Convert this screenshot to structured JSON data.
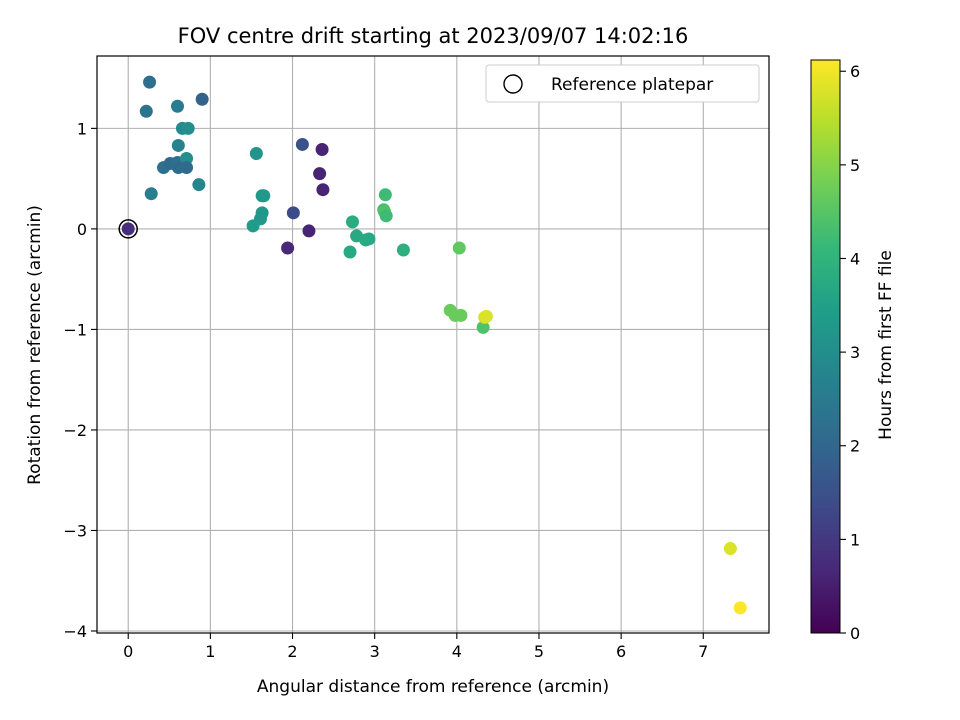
{
  "chart_data": {
    "type": "scatter",
    "title": "FOV centre drift starting at 2023/09/07 14:02:16",
    "xlabel": "Angular distance from reference (arcmin)",
    "ylabel": "Rotation from reference (arcmin)",
    "xlim": [
      -0.38,
      7.8
    ],
    "ylim": [
      -4.02,
      1.72
    ],
    "xticks": [
      0,
      1,
      2,
      3,
      4,
      5,
      6,
      7
    ],
    "yticks": [
      -4,
      -3,
      -2,
      -1,
      0,
      1
    ],
    "grid": true,
    "legend": {
      "placement": "top-right",
      "entries": [
        "Reference platepar"
      ]
    },
    "colorbar": {
      "label": "Hours from first FF file",
      "range": [
        0,
        6.12
      ],
      "ticks": [
        0,
        1,
        2,
        3,
        4,
        5,
        6
      ],
      "colormap": "viridis"
    },
    "reference_point": {
      "x": 0,
      "y": 0
    },
    "points": [
      {
        "x": 0.0,
        "y": 0.0,
        "c": 0.8
      },
      {
        "x": 0.26,
        "y": 1.46,
        "c": 2.2
      },
      {
        "x": 0.22,
        "y": 1.17,
        "c": 2.3
      },
      {
        "x": 0.6,
        "y": 1.22,
        "c": 2.5
      },
      {
        "x": 0.9,
        "y": 1.29,
        "c": 1.9
      },
      {
        "x": 0.66,
        "y": 1.0,
        "c": 2.9
      },
      {
        "x": 0.73,
        "y": 1.0,
        "c": 3.0
      },
      {
        "x": 0.61,
        "y": 0.83,
        "c": 2.7
      },
      {
        "x": 0.43,
        "y": 0.61,
        "c": 2.2
      },
      {
        "x": 0.51,
        "y": 0.65,
        "c": 2.1
      },
      {
        "x": 0.6,
        "y": 0.66,
        "c": 2.2
      },
      {
        "x": 0.71,
        "y": 0.7,
        "c": 3.0
      },
      {
        "x": 0.61,
        "y": 0.61,
        "c": 2.1
      },
      {
        "x": 0.71,
        "y": 0.61,
        "c": 2.1
      },
      {
        "x": 0.86,
        "y": 0.44,
        "c": 2.8
      },
      {
        "x": 0.28,
        "y": 0.35,
        "c": 2.6
      },
      {
        "x": 1.56,
        "y": 0.75,
        "c": 3.2
      },
      {
        "x": 1.63,
        "y": 0.33,
        "c": 3.3
      },
      {
        "x": 1.65,
        "y": 0.33,
        "c": 3.3
      },
      {
        "x": 1.63,
        "y": 0.16,
        "c": 3.3
      },
      {
        "x": 1.61,
        "y": 0.1,
        "c": 3.3
      },
      {
        "x": 1.52,
        "y": 0.03,
        "c": 3.4
      },
      {
        "x": 2.12,
        "y": 0.84,
        "c": 1.5
      },
      {
        "x": 2.36,
        "y": 0.79,
        "c": 0.6
      },
      {
        "x": 2.33,
        "y": 0.55,
        "c": 0.6
      },
      {
        "x": 2.37,
        "y": 0.39,
        "c": 0.6
      },
      {
        "x": 2.01,
        "y": 0.16,
        "c": 1.4
      },
      {
        "x": 2.2,
        "y": -0.02,
        "c": 0.6
      },
      {
        "x": 1.94,
        "y": -0.19,
        "c": 0.7
      },
      {
        "x": 2.73,
        "y": 0.07,
        "c": 3.8
      },
      {
        "x": 2.78,
        "y": -0.07,
        "c": 3.7
      },
      {
        "x": 2.89,
        "y": -0.11,
        "c": 3.8
      },
      {
        "x": 2.93,
        "y": -0.1,
        "c": 3.7
      },
      {
        "x": 2.7,
        "y": -0.23,
        "c": 3.7
      },
      {
        "x": 3.13,
        "y": 0.34,
        "c": 4.2
      },
      {
        "x": 3.11,
        "y": 0.19,
        "c": 4.3
      },
      {
        "x": 3.12,
        "y": 0.17,
        "c": 4.4
      },
      {
        "x": 3.14,
        "y": 0.13,
        "c": 4.2
      },
      {
        "x": 3.35,
        "y": -0.21,
        "c": 3.9
      },
      {
        "x": 4.03,
        "y": -0.19,
        "c": 4.6
      },
      {
        "x": 3.92,
        "y": -0.81,
        "c": 4.7
      },
      {
        "x": 3.98,
        "y": -0.86,
        "c": 4.7
      },
      {
        "x": 4.05,
        "y": -0.86,
        "c": 4.7
      },
      {
        "x": 4.32,
        "y": -0.98,
        "c": 4.4
      },
      {
        "x": 4.34,
        "y": -0.88,
        "c": 5.7
      },
      {
        "x": 4.36,
        "y": -0.87,
        "c": 5.8
      },
      {
        "x": 7.33,
        "y": -3.18,
        "c": 5.8
      },
      {
        "x": 7.45,
        "y": -3.77,
        "c": 6.1
      }
    ]
  }
}
